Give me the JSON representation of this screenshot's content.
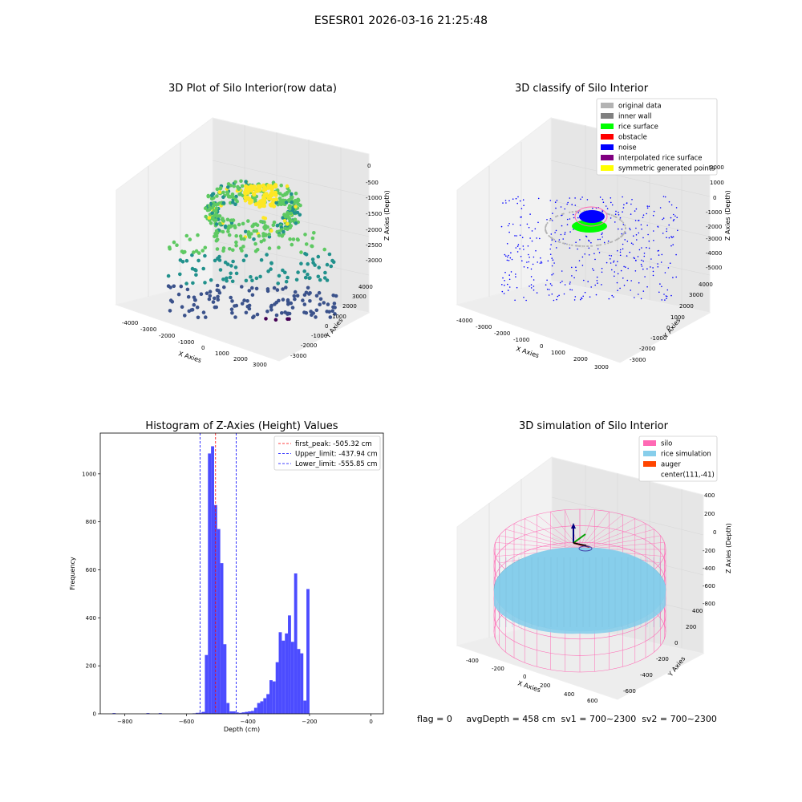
{
  "suptitle": "ESESR01 2026-03-16 21:25:48",
  "panels": {
    "raw": {
      "title": "3D Plot of Silo Interior(row data)",
      "xlabel": "X Axies",
      "ylabel": "Y Axies",
      "zlabel": "Z Axies (Depth)",
      "xticks": [
        "-4000",
        "-3000",
        "-2000",
        "-1000",
        "0",
        "1000",
        "2000",
        "3000"
      ],
      "yticks": [
        "-3000",
        "-2000",
        "-1000",
        "0",
        "1000",
        "2000",
        "3000",
        "4000"
      ],
      "zticks": [
        "0",
        "-500",
        "-1000",
        "-1500",
        "-2000",
        "-2500",
        "-3000"
      ]
    },
    "classify": {
      "title": "3D classify of Silo Interior",
      "xlabel": "X Axies",
      "ylabel": "Y Axies",
      "zlabel": "Z Axies (Depth)",
      "xticks": [
        "-4000",
        "-3000",
        "-2000",
        "-1000",
        "0",
        "1000",
        "2000",
        "3000"
      ],
      "yticks": [
        "-3000",
        "-2000",
        "-1000",
        "0",
        "1000",
        "2000",
        "3000",
        "4000"
      ],
      "zticks": [
        "2000",
        "1000",
        "0",
        "-1000",
        "-2000",
        "-3000",
        "-4000",
        "-5000"
      ],
      "legend": [
        {
          "label": "original data",
          "color": "#b3b3b3"
        },
        {
          "label": "inner wall",
          "color": "#808080"
        },
        {
          "label": "rice surface",
          "color": "#00ff00"
        },
        {
          "label": "obstacle",
          "color": "#ff0000"
        },
        {
          "label": "noise",
          "color": "#0000ff"
        },
        {
          "label": "interpolated rice surface",
          "color": "#800080"
        },
        {
          "label": "symmetric generated points",
          "color": "#ffff00"
        }
      ]
    },
    "simulation": {
      "title": "3D simulation of Silo Interior",
      "xlabel": "X Axies",
      "ylabel": "Y Axies",
      "zlabel": "Z Axies (Depth)",
      "xticks": [
        "-400",
        "-200",
        "0",
        "200",
        "400",
        "600"
      ],
      "yticks": [
        "-600",
        "-400",
        "-200",
        "0",
        "200",
        "400"
      ],
      "zticks": [
        "400",
        "200",
        "0",
        "-200",
        "-400",
        "-600",
        "-800"
      ],
      "legend": [
        {
          "label": "silo",
          "color": "#ff69b4"
        },
        {
          "label": "rice simulation",
          "color": "#87ceeb"
        },
        {
          "label": "auger",
          "color": "#ff4500"
        },
        {
          "label": "center(111,-41)",
          "color": "none"
        }
      ],
      "status": "flag = 0     avgDepth = 458 cm  sv1 = 700~2300  sv2 = 700~2300"
    }
  },
  "chart_data": [
    {
      "type": "scatter",
      "title": "3D Plot of Silo Interior(row data)",
      "xlabel": "X Axies",
      "ylabel": "Y Axies",
      "zlabel": "Z Axies (Depth)",
      "xlim": [
        -4500,
        3500
      ],
      "ylim": [
        -3500,
        4500
      ],
      "zlim": [
        -3500,
        200
      ]
    },
    {
      "type": "scatter",
      "title": "3D classify of Silo Interior",
      "xlabel": "X Axies",
      "ylabel": "Y Axies",
      "zlabel": "Z Axies (Depth)",
      "xlim": [
        -4500,
        3500
      ],
      "ylim": [
        -3500,
        4500
      ],
      "zlim": [
        -5500,
        2500
      ],
      "series": [
        {
          "name": "original data"
        },
        {
          "name": "inner wall"
        },
        {
          "name": "rice surface"
        },
        {
          "name": "obstacle"
        },
        {
          "name": "noise"
        },
        {
          "name": "interpolated rice surface"
        },
        {
          "name": "symmetric generated points"
        }
      ]
    },
    {
      "type": "bar",
      "title": "Histogram of Z-Axies (Height) Values",
      "xlabel": "Depth (cm)",
      "ylabel": "Frequency",
      "xlim": [
        -880,
        40
      ],
      "ylim": [
        0,
        1170
      ],
      "xticks": [
        -800,
        -600,
        -400,
        -200,
        0
      ],
      "yticks": [
        0,
        200,
        400,
        600,
        800,
        1000
      ],
      "bin_width": 10,
      "bins": [
        {
          "x": -840,
          "y": 3
        },
        {
          "x": -730,
          "y": 3
        },
        {
          "x": -690,
          "y": 3
        },
        {
          "x": -580,
          "y": 2
        },
        {
          "x": -570,
          "y": 4
        },
        {
          "x": -560,
          "y": 5
        },
        {
          "x": -550,
          "y": 8
        },
        {
          "x": -540,
          "y": 245
        },
        {
          "x": -530,
          "y": 1085
        },
        {
          "x": -520,
          "y": 1115
        },
        {
          "x": -510,
          "y": 870
        },
        {
          "x": -500,
          "y": 770
        },
        {
          "x": -490,
          "y": 628
        },
        {
          "x": -480,
          "y": 290
        },
        {
          "x": -470,
          "y": 45
        },
        {
          "x": -460,
          "y": 10
        },
        {
          "x": -450,
          "y": 10
        },
        {
          "x": -440,
          "y": 6
        },
        {
          "x": -430,
          "y": 4
        },
        {
          "x": -420,
          "y": 6
        },
        {
          "x": -410,
          "y": 8
        },
        {
          "x": -400,
          "y": 10
        },
        {
          "x": -390,
          "y": 12
        },
        {
          "x": -380,
          "y": 25
        },
        {
          "x": -370,
          "y": 45
        },
        {
          "x": -360,
          "y": 52
        },
        {
          "x": -350,
          "y": 65
        },
        {
          "x": -340,
          "y": 82
        },
        {
          "x": -330,
          "y": 140
        },
        {
          "x": -320,
          "y": 135
        },
        {
          "x": -310,
          "y": 215
        },
        {
          "x": -300,
          "y": 340
        },
        {
          "x": -290,
          "y": 305
        },
        {
          "x": -280,
          "y": 335
        },
        {
          "x": -270,
          "y": 410
        },
        {
          "x": -260,
          "y": 300
        },
        {
          "x": -250,
          "y": 585
        },
        {
          "x": -240,
          "y": 270
        },
        {
          "x": -230,
          "y": 252
        },
        {
          "x": -220,
          "y": 55
        },
        {
          "x": -210,
          "y": 520
        }
      ],
      "vlines": [
        {
          "name": "first_peak: -505.32 cm",
          "x": -505.32,
          "color": "#ff0000",
          "style": "dashed"
        },
        {
          "name": "Upper_limit: -437.94 cm",
          "x": -437.94,
          "color": "#0000ff",
          "style": "dashed"
        },
        {
          "name": "Lower_limit: -555.85 cm",
          "x": -555.85,
          "color": "#0000ff",
          "style": "dashed"
        }
      ],
      "legend_position": "top-right",
      "bar_color": "#4c4cff"
    },
    {
      "type": "surface",
      "title": "3D simulation of Silo Interior",
      "xlabel": "X Axies",
      "ylabel": "Y Axies",
      "zlabel": "Z Axies (Depth)",
      "xlim": [
        -500,
        700
      ],
      "ylim": [
        -700,
        500
      ],
      "zlim": [
        -900,
        450
      ],
      "series": [
        {
          "name": "silo"
        },
        {
          "name": "rice simulation"
        },
        {
          "name": "auger"
        },
        {
          "name": "center(111,-41)"
        }
      ]
    }
  ]
}
